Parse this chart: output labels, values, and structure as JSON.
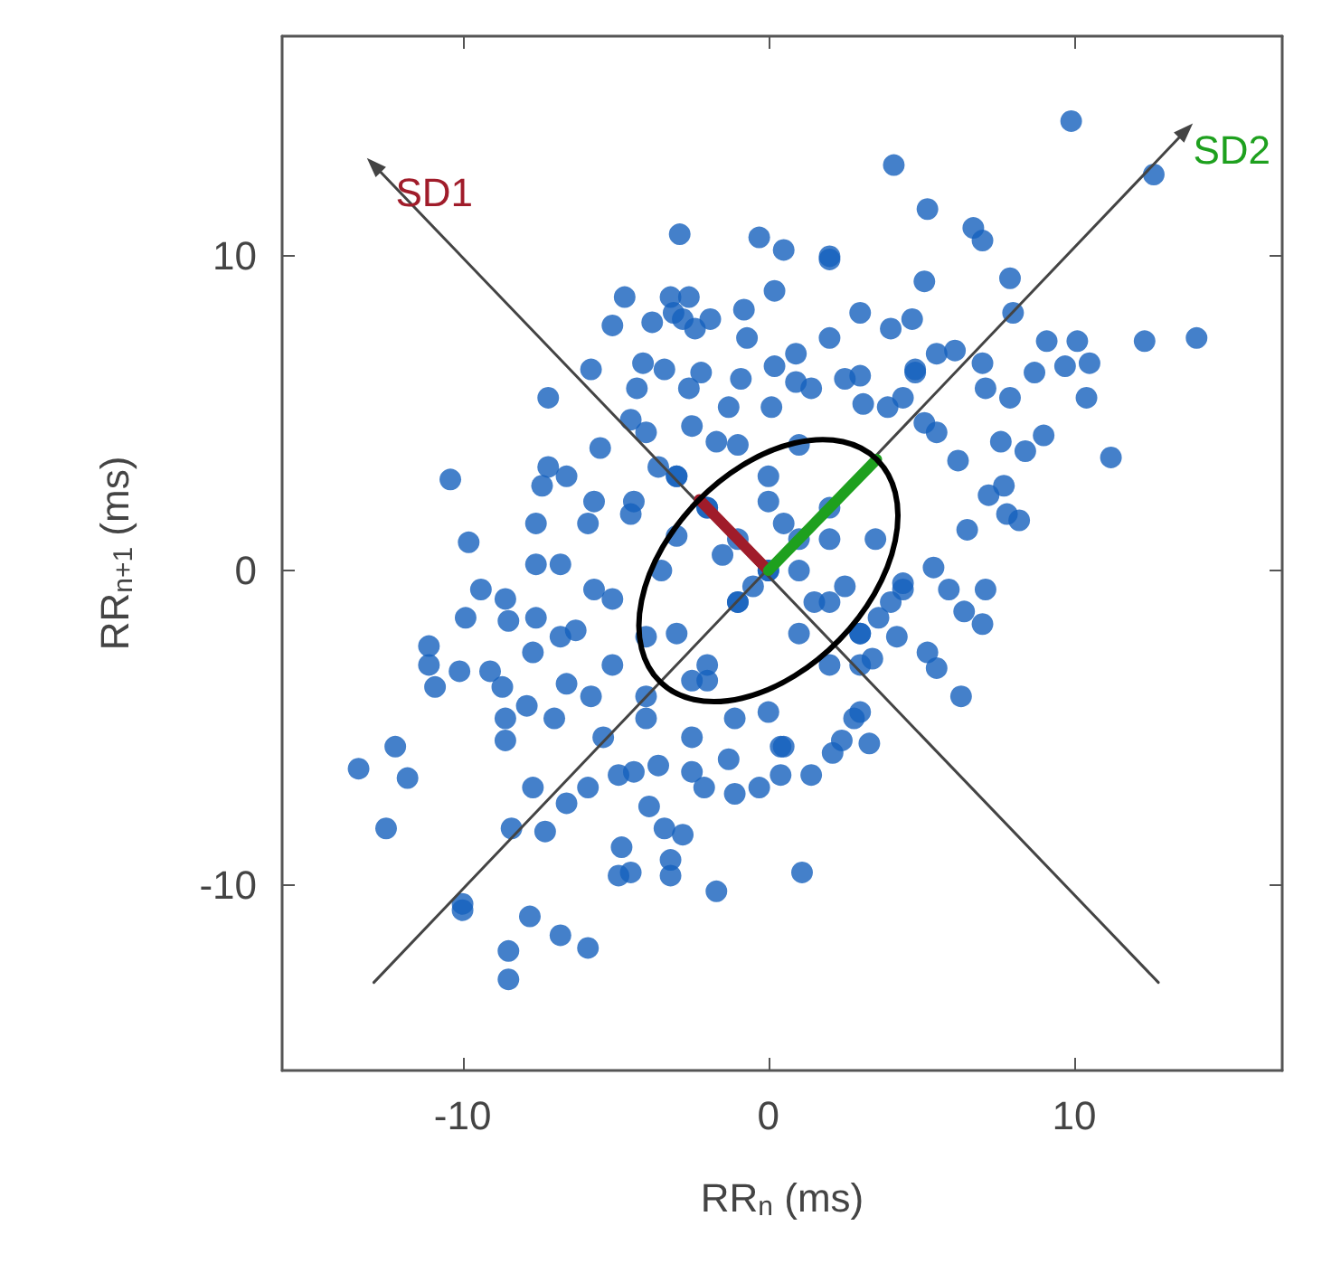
{
  "chart_data": {
    "type": "scatter",
    "xlabel": "RR$_{n}$ (ms)",
    "ylabel": "RR$_{n+1}$ (ms)",
    "xlim": [
      -15.9,
      16.8
    ],
    "ylim": [
      -15.9,
      17
    ],
    "xticks": [
      -10,
      0,
      10
    ],
    "yticks": [
      -10,
      0,
      10
    ],
    "annotations": [
      {
        "text": "SD1",
        "x": -12.9,
        "y": 12.9
      },
      {
        "text": "SD2",
        "x": 13.65,
        "y": 14.0
      }
    ],
    "series": [
      {
        "type": "scatter",
        "color": "#1560bd",
        "x": [
          9.9,
          4.1,
          5.2,
          -2.9,
          -0.3,
          0.5,
          6.7,
          7.0,
          2.0,
          5.1,
          7.9,
          -3.2,
          -4.7,
          -3.8,
          -2.4,
          -7.2,
          -10.4,
          -9.8,
          -7.4,
          9.1,
          10.1,
          12.3,
          14.0,
          11.2,
          9.0,
          10.4,
          8.0,
          3.0,
          2.0,
          0.2,
          2.0,
          12.6,
          -13.4,
          -12.2,
          -11.8,
          -12.5,
          -10.0,
          -10.0,
          -7.8,
          -6.8,
          -5.9,
          -8.5,
          -8.5,
          -8.4,
          -7.3,
          -7.7,
          -8.6,
          -8.6,
          -7.9,
          -7.0,
          -11.1,
          -11.1,
          -10.9,
          -10.1,
          -9.9,
          -9.4,
          -9.1,
          -8.7,
          -8.6,
          -8.5,
          -7.6,
          -7.7,
          -6.8,
          -6.6,
          -5.8,
          -6.6,
          -5.4,
          -4.9,
          -5.9,
          -4.8,
          -4.9,
          -4.5,
          -3.2,
          -3.2,
          -2.8,
          -1.7,
          -3.4,
          -3.9,
          -2.1,
          -1.1,
          -0.3,
          0.4,
          -2.5,
          -1.3,
          0.4,
          -4.4,
          -3.6,
          -6.8,
          -5.7,
          -6.3,
          -5.1,
          -4.0,
          -5.1,
          -4.0,
          -2.5,
          -1.1,
          -7.6,
          1.1,
          3.3,
          2.1,
          0.5,
          1.4,
          2.4,
          2.8,
          6.3,
          5.2,
          7.0,
          7.1,
          6.4,
          5.9,
          5.4,
          4.4,
          4.4,
          3.6,
          4.2,
          3.4,
          5.5,
          6.5,
          7.8,
          8.2,
          7.2,
          7.7,
          8.4,
          6.2,
          5.5,
          7.6,
          7.1,
          7.9,
          8.7,
          9.7,
          10.5,
          7.0,
          6.1,
          4.8,
          4.8,
          5.5,
          4.7,
          4.0,
          3.0,
          2.5,
          0.9,
          0.9,
          0.2,
          1.4,
          3.9,
          4.4,
          5.1,
          3.1,
          -4.0,
          -3.1,
          -2.6,
          -1.9,
          -2.8,
          -0.7,
          -0.8,
          -5.1,
          -4.1,
          -3.4,
          -5.8,
          -0.9,
          -2.2,
          -2.6,
          -1.3,
          0.1,
          -4.3,
          -2.5,
          -1.7,
          -4.5,
          -5.5,
          -3.6,
          -7.2,
          -6.6,
          -5.7,
          -4.5,
          -4.4,
          -7.6,
          -5.9,
          -3.0,
          0.0,
          1.0,
          -1.0,
          2.0,
          -2.0,
          1.0,
          -1.0,
          2.0,
          0.0,
          -2.0,
          0.0,
          3.0,
          1.0,
          -3.0,
          -1.0,
          3.0,
          -3.0,
          2.0,
          -3.0,
          -3.5,
          3.0,
          4.0,
          2.0,
          -1.0,
          1.0,
          -2.0,
          0.0,
          -4.0,
          3.0,
          -2.0,
          0.0,
          1.5,
          -1.5,
          2.5,
          -0.5,
          0.5,
          -2.5,
          3.5
        ],
        "values": [
          14.3,
          12.9,
          11.5,
          10.7,
          10.6,
          10.2,
          10.9,
          10.5,
          10.0,
          9.2,
          9.3,
          8.7,
          8.7,
          7.9,
          7.7,
          5.5,
          2.9,
          0.9,
          2.7,
          7.3,
          7.3,
          7.3,
          7.4,
          3.6,
          4.3,
          5.5,
          8.2,
          8.2,
          7.4,
          8.9,
          9.9,
          12.6,
          -6.3,
          -5.6,
          -6.6,
          -8.2,
          -10.6,
          -10.8,
          -11.0,
          -11.6,
          -12.0,
          -12.1,
          -13.0,
          -8.2,
          -8.3,
          -6.9,
          -5.4,
          -4.7,
          -4.3,
          -4.7,
          -2.4,
          -3.0,
          -3.7,
          -3.2,
          -1.5,
          -0.6,
          -3.2,
          -3.7,
          -0.9,
          -1.6,
          -1.5,
          -2.6,
          -2.1,
          -3.6,
          -4.0,
          -7.4,
          -5.3,
          -6.5,
          -6.9,
          -8.8,
          -9.7,
          -9.6,
          -9.7,
          -9.2,
          -8.4,
          -10.2,
          -8.2,
          -7.5,
          -6.9,
          -7.1,
          -6.9,
          -6.5,
          -6.4,
          -6.0,
          -5.6,
          -6.4,
          -6.2,
          0.2,
          -0.6,
          -1.9,
          -0.9,
          -2.1,
          -3.0,
          -4.7,
          -5.3,
          -4.7,
          0.2,
          -9.6,
          -5.5,
          -5.8,
          -5.6,
          -6.5,
          -5.4,
          -4.7,
          -4.0,
          -2.6,
          -1.7,
          -0.6,
          -1.3,
          -0.6,
          0.1,
          -0.6,
          -0.4,
          -1.5,
          -2.1,
          -2.8,
          -3.1,
          1.3,
          1.8,
          1.6,
          2.4,
          2.7,
          3.8,
          3.5,
          4.4,
          4.1,
          5.8,
          5.5,
          6.3,
          6.5,
          6.6,
          6.6,
          7.0,
          6.3,
          6.4,
          6.9,
          8.0,
          7.7,
          6.2,
          6.1,
          6.0,
          6.9,
          6.5,
          5.8,
          5.2,
          5.5,
          4.7,
          5.3,
          4.4,
          8.2,
          8.7,
          8.0,
          8.0,
          7.4,
          8.3,
          7.8,
          6.6,
          6.4,
          6.4,
          6.1,
          6.3,
          5.8,
          5.2,
          5.2,
          5.8,
          4.6,
          4.1,
          4.8,
          3.9,
          3.3,
          3.3,
          3.0,
          2.2,
          1.8,
          2.2,
          1.5,
          1.5,
          1.1,
          2.2,
          0.0,
          1.0,
          -1.0,
          2.0,
          -2.0,
          -1.0,
          1.0,
          0.0,
          2.0,
          0.0,
          -2.0,
          1.0,
          3.0,
          -1.0,
          -3.0,
          3.0,
          -3.0,
          -2.0,
          0.0,
          -2.0,
          -1.0,
          2.0,
          4.0,
          4.0,
          -3.5,
          -4.5,
          -4.0,
          -4.5,
          -3.0,
          3.0,
          -1.0,
          0.5,
          -0.5,
          -0.5,
          1.5,
          -3.5,
          1.0
        ]
      },
      {
        "type": "line",
        "color": "#444444",
        "marker": "triangle",
        "x": [
          -12.9,
          13.65
        ],
        "values": [
          -13.1,
          14.0
        ]
      },
      {
        "type": "line",
        "color": "#444444",
        "marker": "triangle",
        "x": [
          12.75,
          -12.9
        ],
        "values": [
          -13.1,
          12.9
        ]
      },
      {
        "type": "line",
        "color": "#a01c2a",
        "x": [
          0,
          -2.26
        ],
        "values": [
          0,
          2.26
        ]
      },
      {
        "type": "line",
        "color": "#1ea01e",
        "x": [
          0,
          3.54
        ],
        "values": [
          0,
          3.54
        ]
      }
    ]
  }
}
